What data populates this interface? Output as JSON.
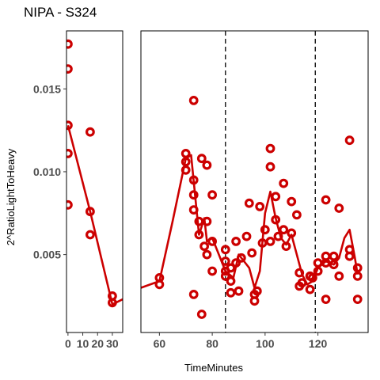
{
  "chart_data": {
    "type": "scatter",
    "title": "NIPA - S324",
    "xlabel": "TimeMinutes",
    "ylabel": "2^RatioLightToHeavy",
    "ylim": [
      0.0003,
      0.0185
    ],
    "y_ticks": [
      0.005,
      0.01,
      0.015
    ],
    "y_tick_labels": [
      "0.005",
      "0.010",
      "0.015"
    ],
    "colors": {
      "series": "#cc0000",
      "axis_text": "#4d4d4d"
    },
    "panels": [
      {
        "xlim": [
          -1,
          37
        ],
        "x_ticks": [
          0,
          10,
          20,
          30
        ],
        "x_tick_labels": [
          "0",
          "10",
          "20",
          "30"
        ],
        "points": [
          [
            0,
            0.0177
          ],
          [
            0,
            0.0162
          ],
          [
            0,
            0.0128
          ],
          [
            0,
            0.0111
          ],
          [
            0,
            0.008
          ],
          [
            15,
            0.0124
          ],
          [
            15,
            0.0076
          ],
          [
            15,
            0.0062
          ],
          [
            30,
            0.0025
          ],
          [
            30,
            0.0021
          ]
        ],
        "fit": [
          [
            0,
            0.0128
          ],
          [
            15,
            0.0076
          ],
          [
            30,
            0.002
          ],
          [
            37,
            0.0023
          ]
        ],
        "vlines": []
      },
      {
        "xlim": [
          53,
          139
        ],
        "x_ticks": [
          60,
          80,
          100,
          120
        ],
        "x_tick_labels": [
          "60",
          "80",
          "100",
          "120"
        ],
        "points": [
          [
            60,
            0.0036
          ],
          [
            60,
            0.0032
          ],
          [
            70,
            0.0111
          ],
          [
            70,
            0.0106
          ],
          [
            70,
            0.0101
          ],
          [
            73,
            0.0143
          ],
          [
            73,
            0.0095
          ],
          [
            73,
            0.0086
          ],
          [
            73,
            0.0077
          ],
          [
            73,
            0.0026
          ],
          [
            75,
            0.007
          ],
          [
            75,
            0.0062
          ],
          [
            76,
            0.0108
          ],
          [
            76,
            0.0014
          ],
          [
            77,
            0.0055
          ],
          [
            78,
            0.007
          ],
          [
            78,
            0.0104
          ],
          [
            78,
            0.005
          ],
          [
            80,
            0.0086
          ],
          [
            80,
            0.004
          ],
          [
            80,
            0.0058
          ],
          [
            85,
            0.0053
          ],
          [
            85,
            0.0046
          ],
          [
            85,
            0.004
          ],
          [
            85,
            0.0037
          ],
          [
            87,
            0.0042
          ],
          [
            87,
            0.0034
          ],
          [
            87,
            0.0027
          ],
          [
            89,
            0.0045
          ],
          [
            89,
            0.0058
          ],
          [
            90,
            0.0028
          ],
          [
            91,
            0.0048
          ],
          [
            93,
            0.0061
          ],
          [
            94,
            0.0081
          ],
          [
            95,
            0.0051
          ],
          [
            96,
            0.0022
          ],
          [
            96,
            0.0026
          ],
          [
            97,
            0.0028
          ],
          [
            98,
            0.0079
          ],
          [
            99,
            0.0057
          ],
          [
            100,
            0.0065
          ],
          [
            102,
            0.0114
          ],
          [
            102,
            0.0103
          ],
          [
            102,
            0.0058
          ],
          [
            104,
            0.0085
          ],
          [
            104,
            0.0071
          ],
          [
            105,
            0.0061
          ],
          [
            107,
            0.0093
          ],
          [
            107,
            0.0065
          ],
          [
            108,
            0.0055
          ],
          [
            110,
            0.0082
          ],
          [
            110,
            0.0063
          ],
          [
            112,
            0.0074
          ],
          [
            113,
            0.0039
          ],
          [
            113,
            0.0031
          ],
          [
            114,
            0.0033
          ],
          [
            117,
            0.0037
          ],
          [
            117,
            0.0029
          ],
          [
            118,
            0.0036
          ],
          [
            120,
            0.0045
          ],
          [
            120,
            0.004
          ],
          [
            123,
            0.0083
          ],
          [
            123,
            0.0049
          ],
          [
            123,
            0.0045
          ],
          [
            123,
            0.0023
          ],
          [
            126,
            0.0049
          ],
          [
            126,
            0.0044
          ],
          [
            128,
            0.0078
          ],
          [
            128,
            0.0037
          ],
          [
            132,
            0.0119
          ],
          [
            132,
            0.0053
          ],
          [
            132,
            0.0049
          ],
          [
            135,
            0.0042
          ],
          [
            135,
            0.0037
          ],
          [
            135,
            0.0023
          ]
        ],
        "fit": [
          [
            53,
            0.003
          ],
          [
            60,
            0.0034
          ],
          [
            65,
            0.007
          ],
          [
            70,
            0.0108
          ],
          [
            72,
            0.011
          ],
          [
            75,
            0.0062
          ],
          [
            77,
            0.0072
          ],
          [
            78,
            0.0058
          ],
          [
            80,
            0.006
          ],
          [
            82,
            0.0052
          ],
          [
            85,
            0.004
          ],
          [
            88,
            0.0036
          ],
          [
            90,
            0.005
          ],
          [
            92,
            0.0046
          ],
          [
            94,
            0.0042
          ],
          [
            96,
            0.003
          ],
          [
            98,
            0.004
          ],
          [
            100,
            0.0075
          ],
          [
            102,
            0.0088
          ],
          [
            104,
            0.0072
          ],
          [
            106,
            0.006
          ],
          [
            108,
            0.0056
          ],
          [
            110,
            0.0062
          ],
          [
            112,
            0.005
          ],
          [
            114,
            0.0038
          ],
          [
            116,
            0.0032
          ],
          [
            118,
            0.0034
          ],
          [
            120,
            0.0042
          ],
          [
            123,
            0.0046
          ],
          [
            126,
            0.0044
          ],
          [
            128,
            0.0048
          ],
          [
            130,
            0.006
          ],
          [
            132,
            0.0065
          ],
          [
            134,
            0.0048
          ],
          [
            135,
            0.0038
          ]
        ],
        "vlines": [
          85,
          119
        ]
      }
    ]
  }
}
